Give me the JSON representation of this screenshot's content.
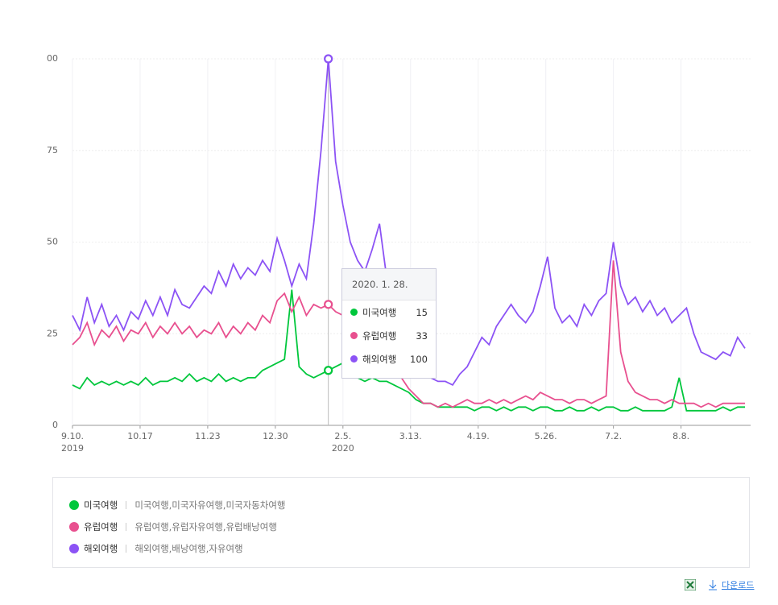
{
  "chart_data": {
    "type": "line",
    "x": [
      "2019-09-10",
      "2019-09-14",
      "2019-09-18",
      "2019-09-22",
      "2019-09-26",
      "2019-09-30",
      "2019-10-04",
      "2019-10-08",
      "2019-10-12",
      "2019-10-16",
      "2019-10-20",
      "2019-10-24",
      "2019-10-28",
      "2019-11-01",
      "2019-11-05",
      "2019-11-09",
      "2019-11-13",
      "2019-11-17",
      "2019-11-21",
      "2019-11-25",
      "2019-11-29",
      "2019-12-03",
      "2019-12-07",
      "2019-12-11",
      "2019-12-15",
      "2019-12-19",
      "2019-12-23",
      "2019-12-27",
      "2019-12-31",
      "2020-01-04",
      "2020-01-08",
      "2020-01-12",
      "2020-01-16",
      "2020-01-20",
      "2020-01-24",
      "2020-01-28",
      "2020-02-01",
      "2020-02-05",
      "2020-02-09",
      "2020-02-13",
      "2020-02-17",
      "2020-02-21",
      "2020-02-25",
      "2020-02-29",
      "2020-03-04",
      "2020-03-08",
      "2020-03-12",
      "2020-03-16",
      "2020-03-20",
      "2020-03-24",
      "2020-03-28",
      "2020-04-01",
      "2020-04-05",
      "2020-04-09",
      "2020-04-13",
      "2020-04-17",
      "2020-04-21",
      "2020-04-25",
      "2020-04-29",
      "2020-05-03",
      "2020-05-07",
      "2020-05-11",
      "2020-05-15",
      "2020-05-19",
      "2020-05-23",
      "2020-05-27",
      "2020-05-31",
      "2020-06-04",
      "2020-06-08",
      "2020-06-12",
      "2020-06-16",
      "2020-06-20",
      "2020-06-24",
      "2020-06-28",
      "2020-07-02",
      "2020-07-06",
      "2020-07-10",
      "2020-07-14",
      "2020-07-18",
      "2020-07-22",
      "2020-07-26",
      "2020-07-30",
      "2020-08-03",
      "2020-08-07",
      "2020-08-11",
      "2020-08-15",
      "2020-08-19",
      "2020-08-23",
      "2020-08-27",
      "2020-08-31",
      "2020-09-04",
      "2020-09-08",
      "2020-09-12"
    ],
    "series": [
      {
        "name": "미국여행",
        "color": "#00c73c",
        "keywords": "미국여행,미국자유여행,미국자동차여행",
        "values": [
          11,
          10,
          13,
          11,
          12,
          11,
          12,
          11,
          12,
          11,
          13,
          11,
          12,
          12,
          13,
          12,
          14,
          12,
          13,
          12,
          14,
          12,
          13,
          12,
          13,
          13,
          15,
          16,
          17,
          18,
          37,
          16,
          14,
          13,
          14,
          15,
          16,
          17,
          14,
          13,
          12,
          13,
          12,
          12,
          11,
          10,
          9,
          7,
          6,
          6,
          5,
          5,
          5,
          5,
          5,
          4,
          5,
          5,
          4,
          5,
          4,
          5,
          5,
          4,
          5,
          5,
          4,
          4,
          5,
          4,
          4,
          5,
          4,
          5,
          5,
          4,
          4,
          5,
          4,
          4,
          4,
          4,
          5,
          13,
          4,
          4,
          4,
          4,
          4,
          5,
          4,
          5,
          5
        ]
      },
      {
        "name": "유럽여행",
        "color": "#e8508f",
        "keywords": "유럽여행,유럽자유여행,유럽배낭여행",
        "values": [
          22,
          24,
          28,
          22,
          26,
          24,
          27,
          23,
          26,
          25,
          28,
          24,
          27,
          25,
          28,
          25,
          27,
          24,
          26,
          25,
          28,
          24,
          27,
          25,
          28,
          26,
          30,
          28,
          34,
          36,
          31,
          35,
          30,
          33,
          32,
          33,
          31,
          30,
          28,
          26,
          24,
          23,
          22,
          19,
          16,
          13,
          10,
          8,
          6,
          6,
          5,
          6,
          5,
          6,
          7,
          6,
          6,
          7,
          6,
          7,
          6,
          7,
          8,
          7,
          9,
          8,
          7,
          7,
          6,
          7,
          7,
          6,
          7,
          8,
          45,
          20,
          12,
          9,
          8,
          7,
          7,
          6,
          7,
          6,
          6,
          6,
          5,
          6,
          5,
          6,
          6,
          6,
          6
        ]
      },
      {
        "name": "해외여행",
        "color": "#8c53f5",
        "keywords": "해외여행,배낭여행,자유여행",
        "values": [
          30,
          26,
          35,
          28,
          33,
          27,
          30,
          26,
          31,
          29,
          34,
          30,
          35,
          30,
          37,
          33,
          32,
          35,
          38,
          36,
          42,
          38,
          44,
          40,
          43,
          41,
          45,
          42,
          51,
          45,
          38,
          44,
          40,
          55,
          75,
          100,
          72,
          60,
          50,
          45,
          42,
          48,
          55,
          40,
          35,
          28,
          22,
          18,
          14,
          13,
          12,
          12,
          11,
          14,
          16,
          20,
          24,
          22,
          27,
          30,
          33,
          30,
          28,
          31,
          38,
          46,
          32,
          28,
          30,
          27,
          33,
          30,
          34,
          36,
          50,
          38,
          33,
          35,
          31,
          34,
          30,
          32,
          28,
          30,
          32,
          25,
          20,
          19,
          18,
          20,
          19,
          24,
          21
        ]
      }
    ],
    "xlim": [
      "2019-09-10",
      "2020-09-12"
    ],
    "xticks": [
      {
        "value": "2019-09-10",
        "label": "9.10."
      },
      {
        "value": "2019-10-17",
        "label": "10.17"
      },
      {
        "value": "2019-11-23",
        "label": "11.23"
      },
      {
        "value": "2019-12-30",
        "label": "12.30"
      },
      {
        "value": "2020-02-05",
        "label": "2.5."
      },
      {
        "value": "2020-03-13",
        "label": "3.13."
      },
      {
        "value": "2020-04-19",
        "label": "4.19."
      },
      {
        "value": "2020-05-26",
        "label": "5.26."
      },
      {
        "value": "2020-07-02",
        "label": "7.2."
      },
      {
        "value": "2020-08-08",
        "label": "8.8."
      }
    ],
    "year_labels": [
      {
        "value": "2019-09-10",
        "label": "2019"
      },
      {
        "value": "2020-02-05",
        "label": "2020"
      }
    ],
    "ylim": [
      0,
      100
    ],
    "yticks": [
      0,
      25,
      50,
      75,
      {
        "value": 100,
        "label": "00"
      }
    ],
    "grid": true,
    "tooltip": {
      "date": "2020. 1. 28.",
      "x": "2020-01-28",
      "rows": [
        {
          "name": "미국여행",
          "value": 15
        },
        {
          "name": "유럽여행",
          "value": 33
        },
        {
          "name": "해외여행",
          "value": 100
        }
      ]
    },
    "download": "다운로드"
  }
}
